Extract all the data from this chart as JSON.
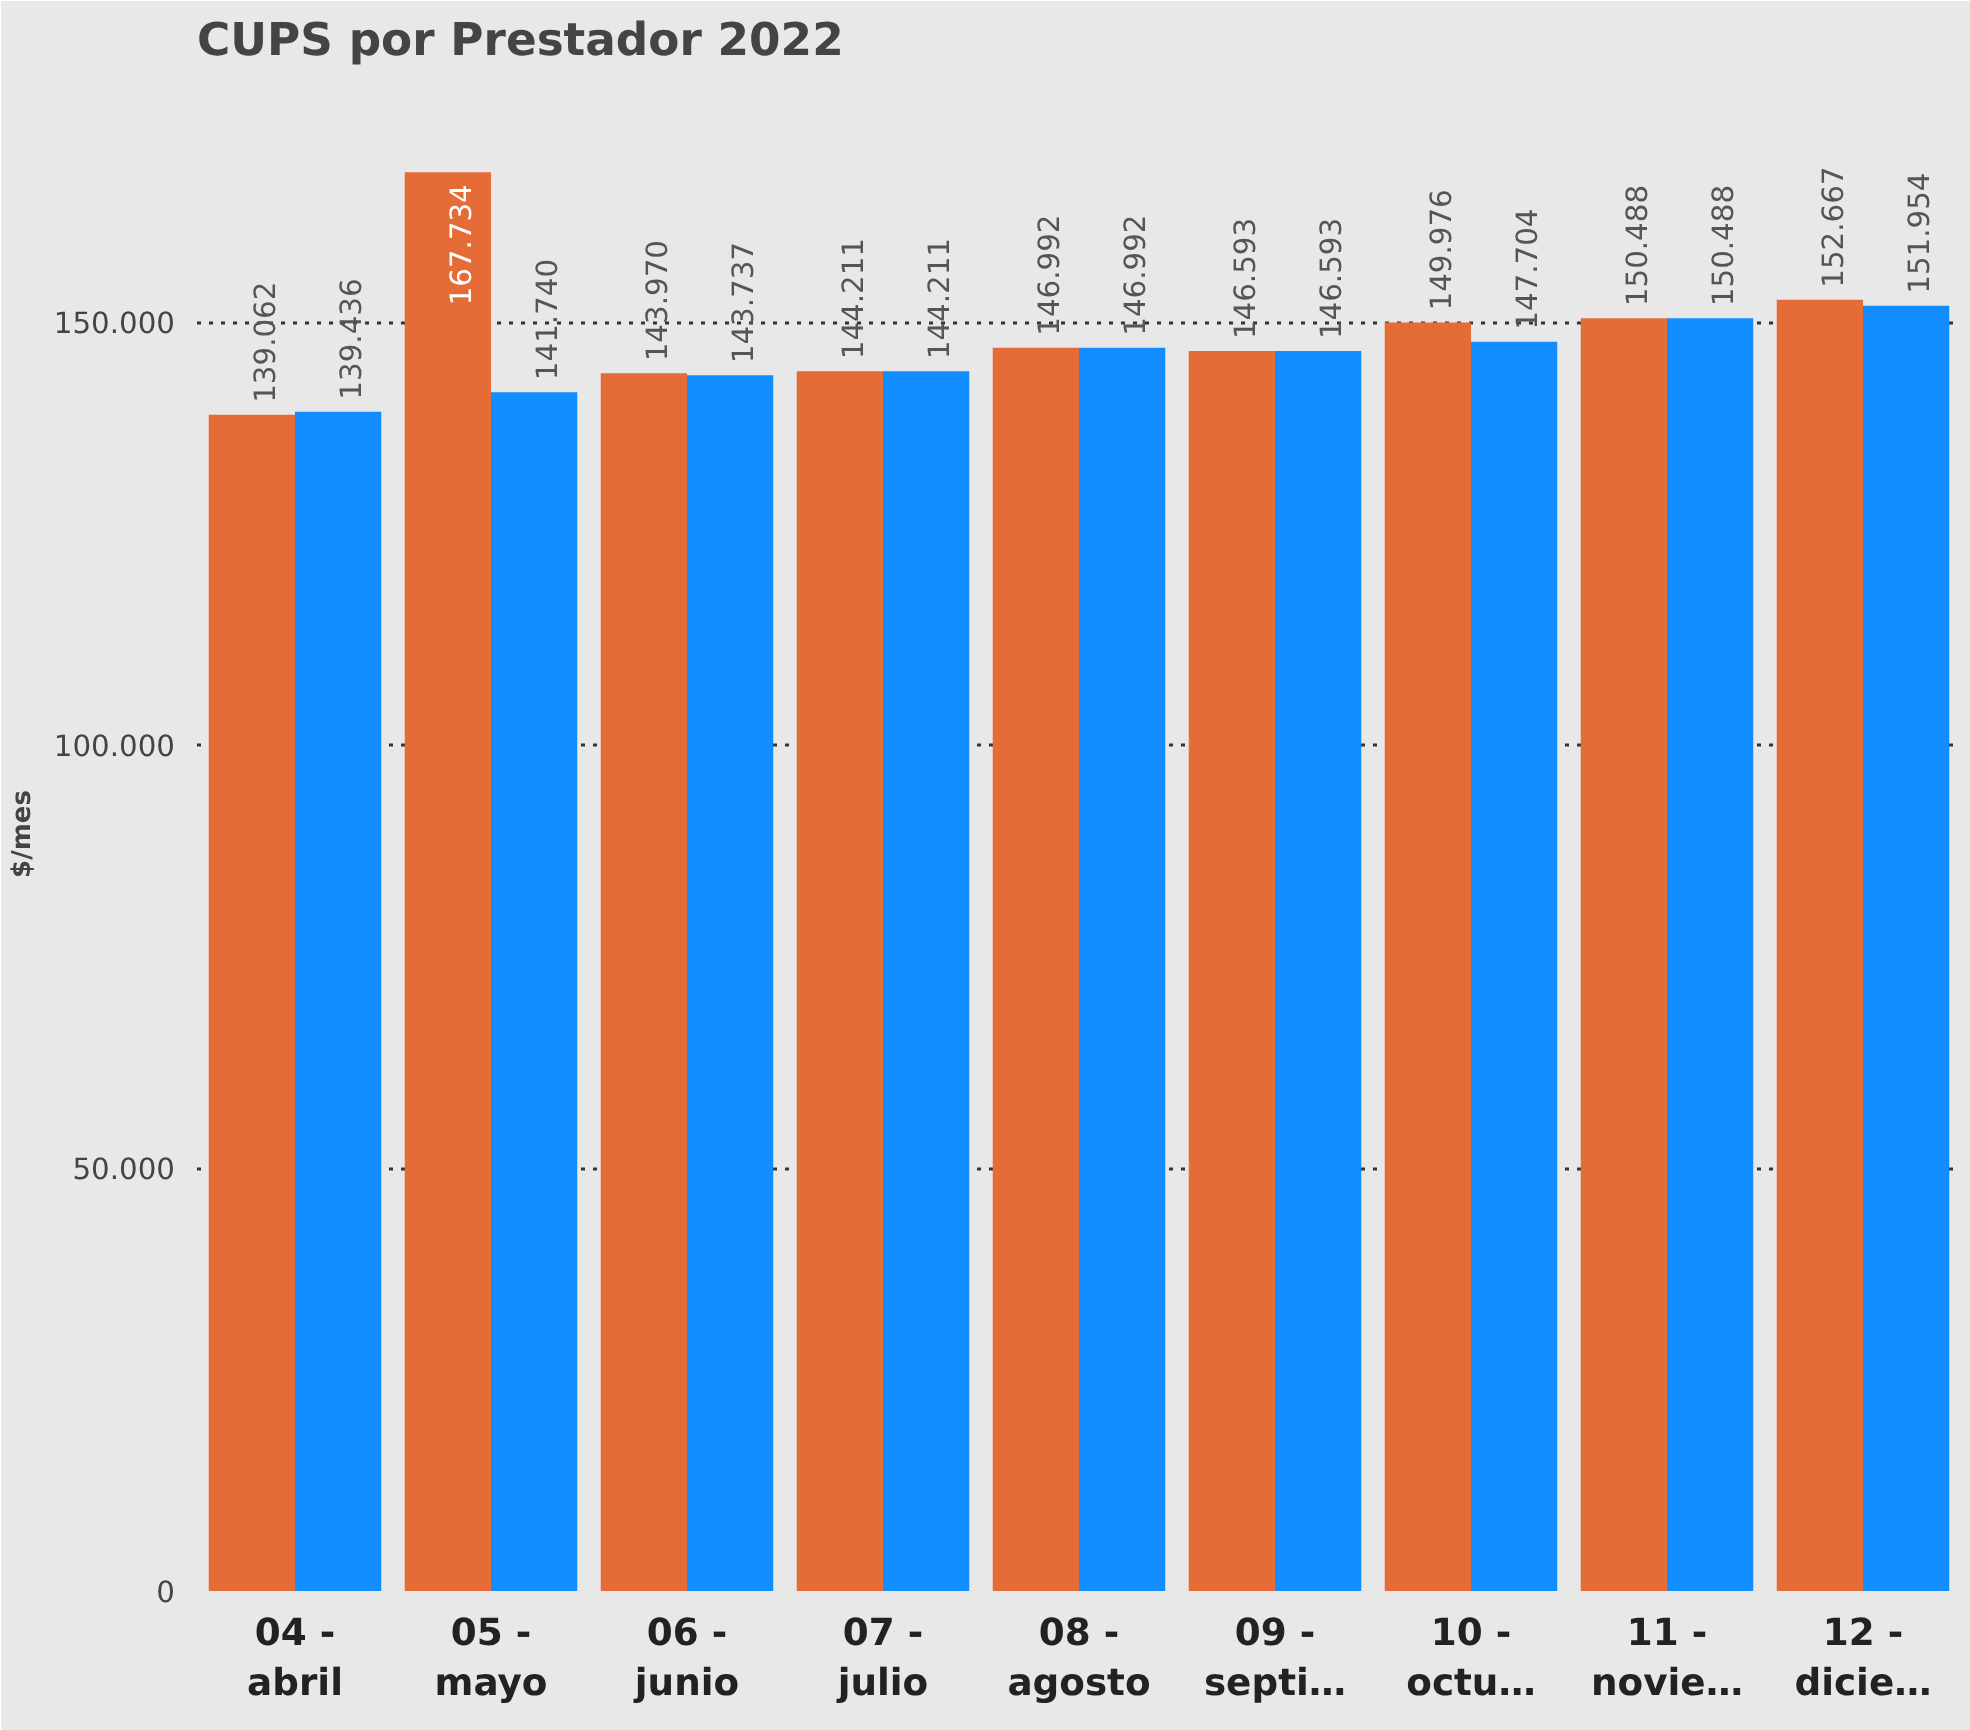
{
  "chart_data": {
    "type": "bar",
    "title": "CUPS por Prestador 2022",
    "ylabel": "$/mes",
    "categories": [
      "04 - abril",
      "05 - mayo",
      "06 - junio",
      "07 - julio",
      "08 - agosto",
      "09 - septi…",
      "10 - octu…",
      "11 - novie…",
      "12 - dicie…"
    ],
    "series": [
      {
        "color": "#e66c37",
        "values": [
          139062,
          167734,
          143970,
          144211,
          146992,
          146593,
          149976,
          150488,
          152667
        ],
        "value_labels": [
          "139.062",
          "167.734",
          "143.970",
          "144.211",
          "146.992",
          "146.593",
          "149.976",
          "150.488",
          "152.667"
        ]
      },
      {
        "color": "#118dff",
        "values": [
          139436,
          141740,
          143737,
          144211,
          146992,
          146593,
          147704,
          150488,
          151954
        ],
        "value_labels": [
          "139.436",
          "141.740",
          "143.737",
          "144.211",
          "146.992",
          "146.593",
          "147.704",
          "150.488",
          "151.954"
        ]
      }
    ],
    "ylim": [
      0,
      179000
    ],
    "yticks": [
      {
        "value": 0,
        "label": "0"
      },
      {
        "value": 50000,
        "label": "50.000"
      },
      {
        "value": 100000,
        "label": "100.000"
      },
      {
        "value": 150000,
        "label": "150.000"
      }
    ],
    "grid": "y"
  }
}
